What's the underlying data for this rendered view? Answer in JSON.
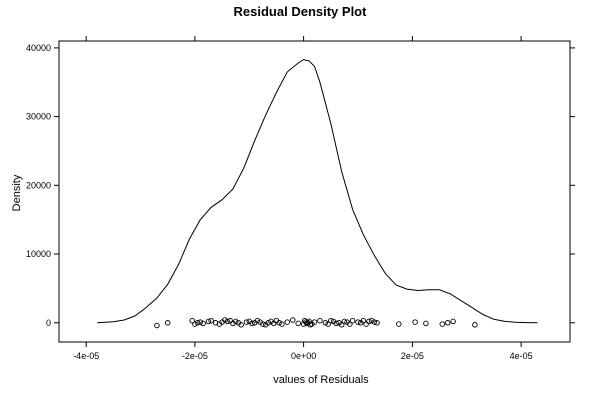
{
  "chart_data": {
    "type": "line",
    "title": "Residual Density Plot",
    "xlabel": "values of Residuals",
    "ylabel": "Density",
    "xlim": [
      -4.5e-05,
      4.9e-05
    ],
    "ylim": [
      -2800,
      41000
    ],
    "grid": false,
    "x_ticks": [
      {
        "value": -4e-05,
        "label": "-4e-05"
      },
      {
        "value": -2e-05,
        "label": "-2e-05"
      },
      {
        "value": 0,
        "label": "0e+00"
      },
      {
        "value": 2e-05,
        "label": "2e-05"
      },
      {
        "value": 4e-05,
        "label": "4e-05"
      }
    ],
    "y_ticks": [
      {
        "value": 0,
        "label": "0"
      },
      {
        "value": 10000,
        "label": "10000"
      },
      {
        "value": 20000,
        "label": "20000"
      },
      {
        "value": 30000,
        "label": "30000"
      },
      {
        "value": 40000,
        "label": "40000"
      }
    ],
    "series": [
      {
        "x": [
          -3.8e-05,
          -3.5e-05,
          -3.3e-05,
          -3.1e-05,
          -2.9e-05,
          -2.7e-05,
          -2.5e-05,
          -2.3e-05,
          -2.1e-05,
          -1.9e-05,
          -1.7e-05,
          -1.5e-05,
          -1.3e-05,
          -1.1e-05,
          -9e-06,
          -7e-06,
          -5e-06,
          -3e-06,
          -1e-06,
          0,
          1e-06,
          2e-06,
          3e-06,
          5e-06,
          7e-06,
          9e-06,
          1.1e-05,
          1.3e-05,
          1.5e-05,
          1.7e-05,
          1.9e-05,
          2.1e-05,
          2.3e-05,
          2.5e-05,
          2.7e-05,
          2.9e-05,
          3.1e-05,
          3.3e-05,
          3.5e-05,
          3.7e-05,
          3.9e-05,
          4.1e-05,
          4.3e-05
        ],
        "values": [
          0,
          150,
          400,
          1000,
          2200,
          3600,
          5600,
          8500,
          12200,
          15000,
          16800,
          17900,
          19500,
          22500,
          26500,
          30200,
          33500,
          36500,
          37800,
          38300,
          38100,
          37300,
          35000,
          29000,
          22000,
          16500,
          12800,
          9800,
          7200,
          5500,
          4900,
          4700,
          4800,
          4800,
          4200,
          3200,
          2200,
          1200,
          500,
          200,
          80,
          20,
          0
        ]
      }
    ],
    "rug": {
      "x": [
        -2.7e-05,
        -2.5e-05,
        -2.05e-05,
        -2e-05,
        -1.95e-05,
        -1.9e-05,
        -1.85e-05,
        -1.75e-05,
        -1.7e-05,
        -1.62e-05,
        -1.55e-05,
        -1.5e-05,
        -1.45e-05,
        -1.4e-05,
        -1.35e-05,
        -1.3e-05,
        -1.25e-05,
        -1.2e-05,
        -1.15e-05,
        -1.05e-05,
        -1e-05,
        -9.5e-06,
        -9e-06,
        -8.5e-06,
        -8e-06,
        -7.5e-06,
        -7e-06,
        -6.5e-06,
        -6e-06,
        -5.5e-06,
        -5e-06,
        -4.5e-06,
        -4e-06,
        -3e-06,
        -2e-06,
        -1e-06,
        0,
        2e-07,
        4e-07,
        6e-07,
        8e-07,
        1e-06,
        1.2e-06,
        1.5e-06,
        2e-06,
        3e-06,
        4e-06,
        4.5e-06,
        5e-06,
        5.5e-06,
        6e-06,
        6.5e-06,
        7e-06,
        7.5e-06,
        8e-06,
        8.5e-06,
        9e-06,
        1e-05,
        1.05e-05,
        1.1e-05,
        1.15e-05,
        1.2e-05,
        1.25e-05,
        1.3e-05,
        1.35e-05,
        1.75e-05,
        2.05e-05,
        2.25e-05,
        2.55e-05,
        2.65e-05,
        2.75e-05,
        3.15e-05
      ],
      "y": [
        -400,
        0,
        300,
        -200,
        0,
        100,
        -100,
        200,
        300,
        0,
        -200,
        100,
        400,
        200,
        300,
        -100,
        200,
        0,
        -300,
        100,
        200,
        -100,
        0,
        300,
        100,
        -200,
        -300,
        0,
        200,
        -100,
        300,
        0,
        -200,
        100,
        400,
        -100,
        -200,
        300,
        100,
        -100,
        0,
        200,
        -300,
        -200,
        100,
        300,
        0,
        -200,
        300,
        200,
        -100,
        0,
        -300,
        200,
        100,
        -200,
        300,
        100,
        0,
        300,
        -200,
        200,
        300,
        100,
        0,
        -200,
        100,
        -100,
        -200,
        0,
        200,
        -300
      ]
    }
  }
}
